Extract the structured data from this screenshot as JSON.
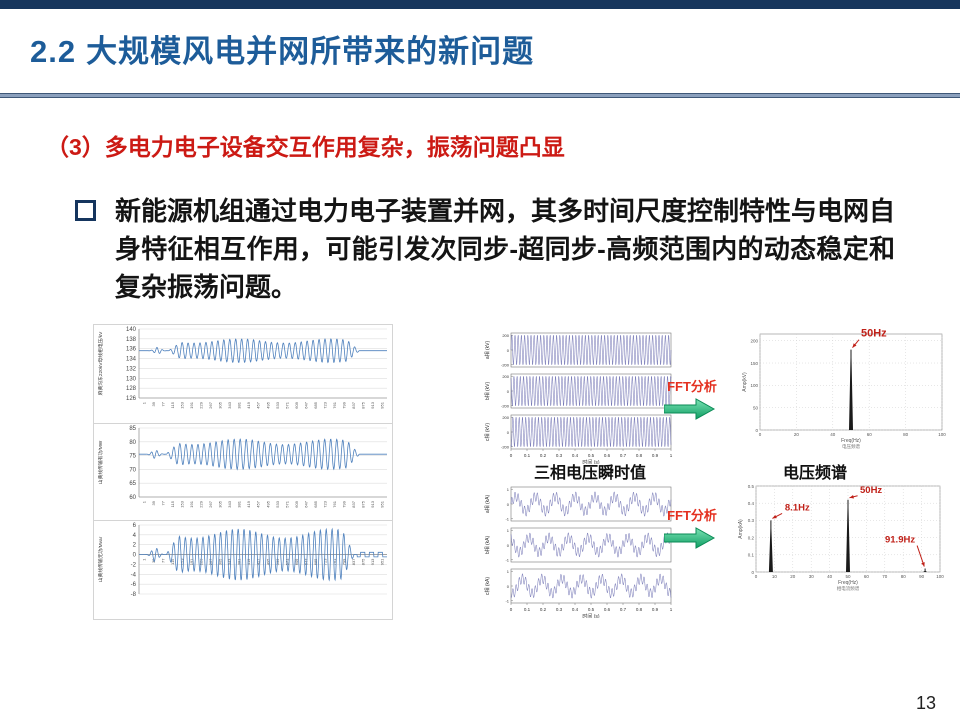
{
  "header": {
    "section_number": "2.2",
    "title": "大规模风电并网所带来的新问题"
  },
  "subtitle": "（3）多电力电子设备交互作用复杂，振荡问题凸显",
  "body": {
    "bullet_text": "新能源机组通过电力电子装置并网，其多时间尺度控制特性与电网自身特征相互作用，可能引发次同步-超同步-高频范围内的动态稳定和复杂振荡问题。"
  },
  "labels": {
    "fft": "FFT分析"
  },
  "footer": {
    "page_number": "13"
  },
  "colors": {
    "top_bar": "#17365d",
    "title_blue": "#1d5c99",
    "subtitle_red": "#cc1a14",
    "wave_blue": "#4f81bd",
    "wave_violet": "#5c5fa8",
    "arrow_green_light": "#7be3b4",
    "arrow_green_dark": "#0f9d63",
    "annotation_red": "#c02018",
    "fft_label_red": "#e43020"
  },
  "left_xticklabels": [
    "1",
    "39",
    "77",
    "115",
    "153",
    "191",
    "229",
    "267",
    "305",
    "343",
    "381",
    "419",
    "457",
    "495",
    "533",
    "571",
    "609",
    "647",
    "685",
    "723",
    "761",
    "799",
    "837",
    "875",
    "913",
    "951"
  ],
  "chart_data": [
    {
      "id": "left-voltage",
      "type": "line",
      "ylabel": "麻黄沟东220kV母线相电压/kV",
      "ylim": [
        126,
        140
      ],
      "yticks": [
        140,
        138,
        136,
        134,
        132,
        130,
        128,
        126
      ],
      "baseline": 135.6,
      "osc_amplitude": 2.4,
      "osc_cycles": 30,
      "osc_start": 0.12,
      "osc_end": 0.84,
      "grid": true
    },
    {
      "id": "left-active-power",
      "type": "line",
      "ylabel": "山黄线传输有功/MW",
      "ylim": [
        60,
        85
      ],
      "yticks": [
        85,
        80,
        75,
        70,
        65,
        60
      ],
      "baseline": 75.5,
      "osc_amplitude": 5.5,
      "osc_cycles": 30,
      "osc_start": 0.11,
      "osc_end": 0.84,
      "grid": true
    },
    {
      "id": "left-reactive-power",
      "type": "line",
      "ylabel": "山黄线传输无功/Mvar",
      "ylim": [
        -8,
        6
      ],
      "yticks": [
        6,
        4,
        2,
        0,
        -2,
        -4,
        -6,
        -8
      ],
      "baseline": 0,
      "osc_amplitude": 5.2,
      "osc_cycles": 30,
      "osc_start": 0.11,
      "osc_end": 0.82,
      "zero_axis": true,
      "tail_ripple": true,
      "grid": true
    },
    {
      "id": "three-phase-voltage",
      "type": "waveform-group",
      "strip_labels": [
        "a相 (kV)",
        "b相 (kV)",
        "c相 (kV)"
      ],
      "ylim": [
        -230,
        230
      ],
      "yticks": [
        200,
        0,
        -200
      ],
      "components": [
        {
          "freq": 50,
          "amp": 200
        }
      ],
      "xticks": [
        "0",
        "0.1",
        "0.2",
        "0.3",
        "0.4",
        "0.5",
        "0.6",
        "0.7",
        "0.8",
        "0.9",
        "1"
      ],
      "xlabel": "时间 (s)",
      "caption": "三相电压瞬时值"
    },
    {
      "id": "voltage-spectrum",
      "type": "spectrum",
      "ylabel": "Amp(kV)",
      "xlabel": "Freq(Hz)",
      "ylim": [
        0,
        215
      ],
      "yticks": [
        0,
        50,
        100,
        150,
        200
      ],
      "xlim": [
        0,
        100
      ],
      "xticks": [
        0,
        20,
        40,
        60,
        80,
        100
      ],
      "peaks": [
        {
          "freq": 50,
          "amp": 180,
          "label": "50Hz",
          "label_dx": 10,
          "label_dy": -13,
          "anchor": "start"
        }
      ],
      "caption": "电压频谱"
    },
    {
      "id": "three-phase-current",
      "type": "waveform-group",
      "strip_labels": [
        "a相 (kA)",
        "b相 (kA)",
        "c相 (kA)"
      ],
      "ylim": [
        -1.15,
        1.15
      ],
      "yticks": [
        1,
        0,
        -1
      ],
      "components": [
        {
          "freq": 8.1,
          "amp": 0.5
        },
        {
          "freq": 50,
          "amp": 0.33
        }
      ],
      "xticks": [
        "0",
        "0.1",
        "0.2",
        "0.3",
        "0.4",
        "0.5",
        "0.6",
        "0.7",
        "0.8",
        "0.9",
        "1"
      ],
      "xlabel": "时间 (s)",
      "caption": ""
    },
    {
      "id": "current-spectrum",
      "type": "spectrum",
      "ylabel": "Amp(kA)",
      "xlabel": "Freq(Hz)",
      "ylim": [
        0,
        0.5
      ],
      "yticks": [
        0,
        0.1,
        0.2,
        0.3,
        0.4,
        0.5
      ],
      "xlim": [
        0,
        100
      ],
      "xticks": [
        0,
        10,
        20,
        30,
        40,
        50,
        60,
        70,
        80,
        90,
        100
      ],
      "peaks": [
        {
          "freq": 8.1,
          "amp": 0.3,
          "label": "8.1Hz",
          "label_dx": 14,
          "label_dy": -10,
          "anchor": "start"
        },
        {
          "freq": 50,
          "amp": 0.42,
          "label": "50Hz",
          "label_dx": 12,
          "label_dy": -7,
          "anchor": "start"
        },
        {
          "freq": 91.9,
          "amp": 0.02,
          "label": "91.9Hz",
          "label_dx": -10,
          "label_dy": -26,
          "anchor": "end"
        }
      ],
      "caption": "相电流频谱"
    }
  ]
}
